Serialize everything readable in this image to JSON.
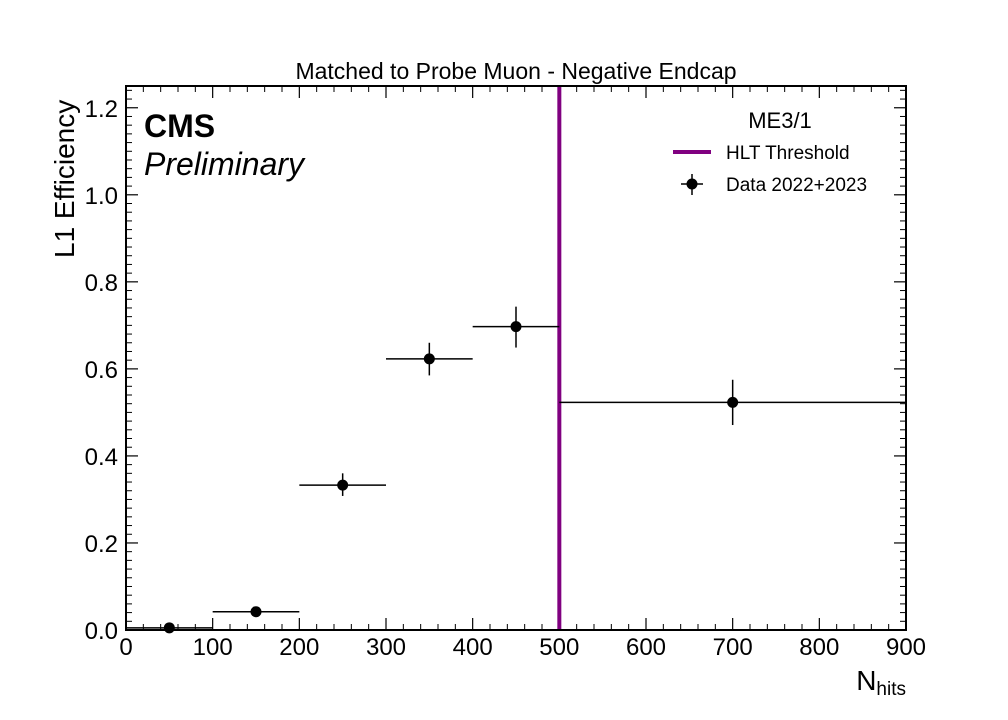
{
  "chart_data": {
    "type": "scatter",
    "title": "Matched to Probe Muon - Negative Endcap",
    "xlabel": "N",
    "xlabel_sub": "hits",
    "ylabel": "L1 Efficiency",
    "experiment_label": "CMS",
    "status_label": "Preliminary",
    "xlim": [
      0,
      900
    ],
    "ylim": [
      0,
      1.25
    ],
    "x_ticks": [
      0,
      100,
      200,
      300,
      400,
      500,
      600,
      700,
      800,
      900
    ],
    "x_tick_labels": [
      "0",
      "100",
      "200",
      "300",
      "400",
      "500",
      "600",
      "700",
      "800",
      "900"
    ],
    "y_ticks": [
      0,
      0.2,
      0.4,
      0.6,
      0.8,
      1.0,
      1.2
    ],
    "y_tick_labels": [
      "0.0",
      "0.2",
      "0.4",
      "0.6",
      "0.8",
      "1.0",
      "1.2"
    ],
    "grid": false,
    "legend": {
      "title": "ME3/1",
      "placement": "top-right",
      "entries": [
        "HLT Threshold",
        "Data 2022+2023"
      ]
    },
    "threshold": {
      "name": "HLT Threshold",
      "x": 500,
      "color": "#800080"
    },
    "series": [
      {
        "name": "Data 2022+2023",
        "color": "#000000",
        "points": [
          {
            "x": 50,
            "xlow": 0,
            "xhigh": 100,
            "y": 0.005,
            "yerr_low": 0.003,
            "yerr_high": 0.005
          },
          {
            "x": 150,
            "xlow": 100,
            "xhigh": 200,
            "y": 0.042,
            "yerr_low": 0.008,
            "yerr_high": 0.008
          },
          {
            "x": 250,
            "xlow": 200,
            "xhigh": 300,
            "y": 0.333,
            "yerr_low": 0.025,
            "yerr_high": 0.027
          },
          {
            "x": 350,
            "xlow": 300,
            "xhigh": 400,
            "y": 0.623,
            "yerr_low": 0.038,
            "yerr_high": 0.037
          },
          {
            "x": 450,
            "xlow": 400,
            "xhigh": 500,
            "y": 0.697,
            "yerr_low": 0.048,
            "yerr_high": 0.046
          },
          {
            "x": 700,
            "xlow": 500,
            "xhigh": 900,
            "y": 0.523,
            "yerr_low": 0.052,
            "yerr_high": 0.052
          }
        ]
      }
    ]
  }
}
